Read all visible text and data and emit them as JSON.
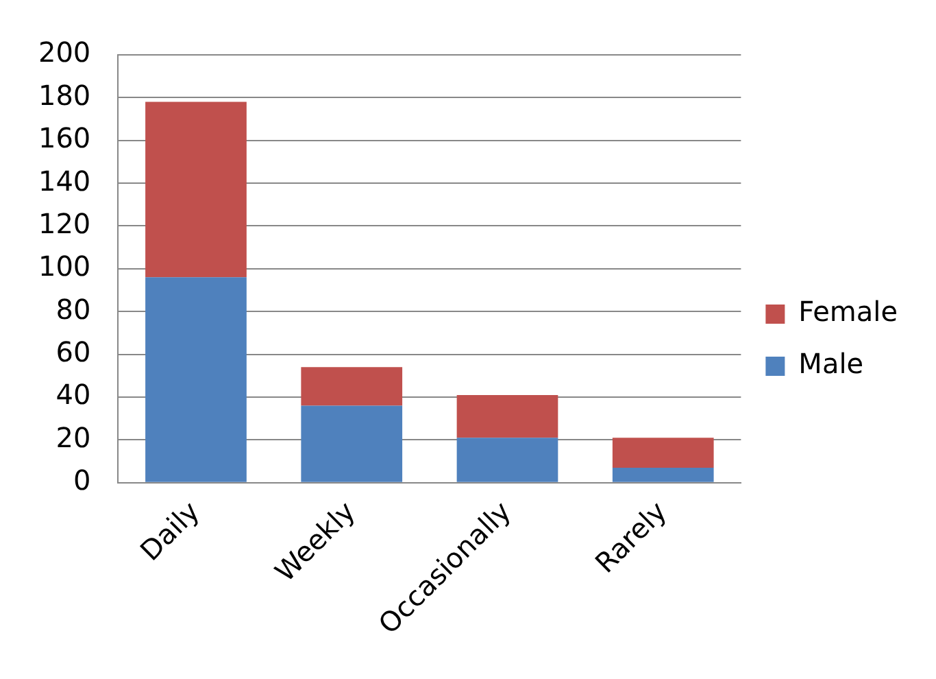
{
  "chart_data": {
    "type": "bar",
    "stacked": true,
    "categories": [
      "Daily",
      "Weekly",
      "Occasionally",
      "Rarely"
    ],
    "series": [
      {
        "name": "Male",
        "color": "#4f81bd",
        "values": [
          96,
          36,
          21,
          7
        ]
      },
      {
        "name": "Female",
        "color": "#c0504d",
        "values": [
          82,
          18,
          20,
          14
        ]
      }
    ],
    "ylim": [
      0,
      200
    ],
    "yticks": [
      0,
      20,
      40,
      60,
      80,
      100,
      120,
      140,
      160,
      180,
      200
    ],
    "grid": "y",
    "legend": "right"
  }
}
